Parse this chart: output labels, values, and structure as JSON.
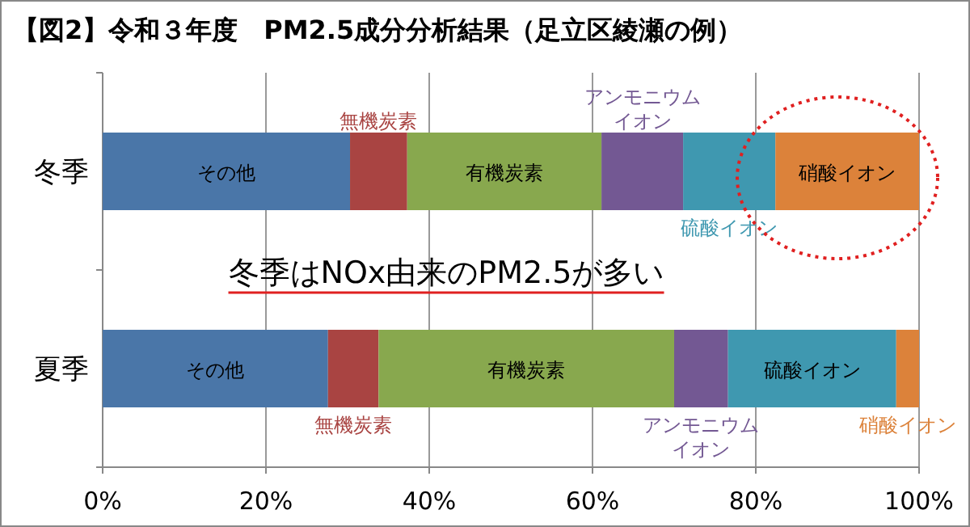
{
  "chart_data": {
    "type": "bar",
    "orientation": "horizontal",
    "stacked": true,
    "title": "【図2】令和３年度　PM2.5成分分析結果（足立区綾瀬の例）",
    "categories": [
      "冬季",
      "夏季"
    ],
    "series": [
      {
        "name": "その他",
        "color": "#4a76a8",
        "values": [
          30.3,
          27.6
        ]
      },
      {
        "name": "無機炭素",
        "color": "#a94442",
        "values": [
          7.0,
          6.2
        ]
      },
      {
        "name": "有機炭素",
        "color": "#88a84e",
        "values": [
          23.8,
          36.2
        ]
      },
      {
        "name": "アンモニウムイオン",
        "color": "#735893",
        "values": [
          10.0,
          6.6
        ]
      },
      {
        "name": "硫酸イオン",
        "color": "#3f98b0",
        "values": [
          11.3,
          20.6
        ]
      },
      {
        "name": "硝酸イオン",
        "color": "#dc823a",
        "values": [
          17.6,
          2.8
        ]
      }
    ],
    "xlim": [
      0,
      100
    ],
    "xticks": [
      {
        "value": 0,
        "label": "0%"
      },
      {
        "value": 20,
        "label": "20%"
      },
      {
        "value": 40,
        "label": "40%"
      },
      {
        "value": 60,
        "label": "60%"
      },
      {
        "value": 80,
        "label": "80%"
      },
      {
        "value": 100,
        "label": "100%"
      }
    ],
    "grid": "x",
    "legend": false,
    "annotations": [
      "冬季はNOx由来のPM2.5が多い"
    ]
  }
}
